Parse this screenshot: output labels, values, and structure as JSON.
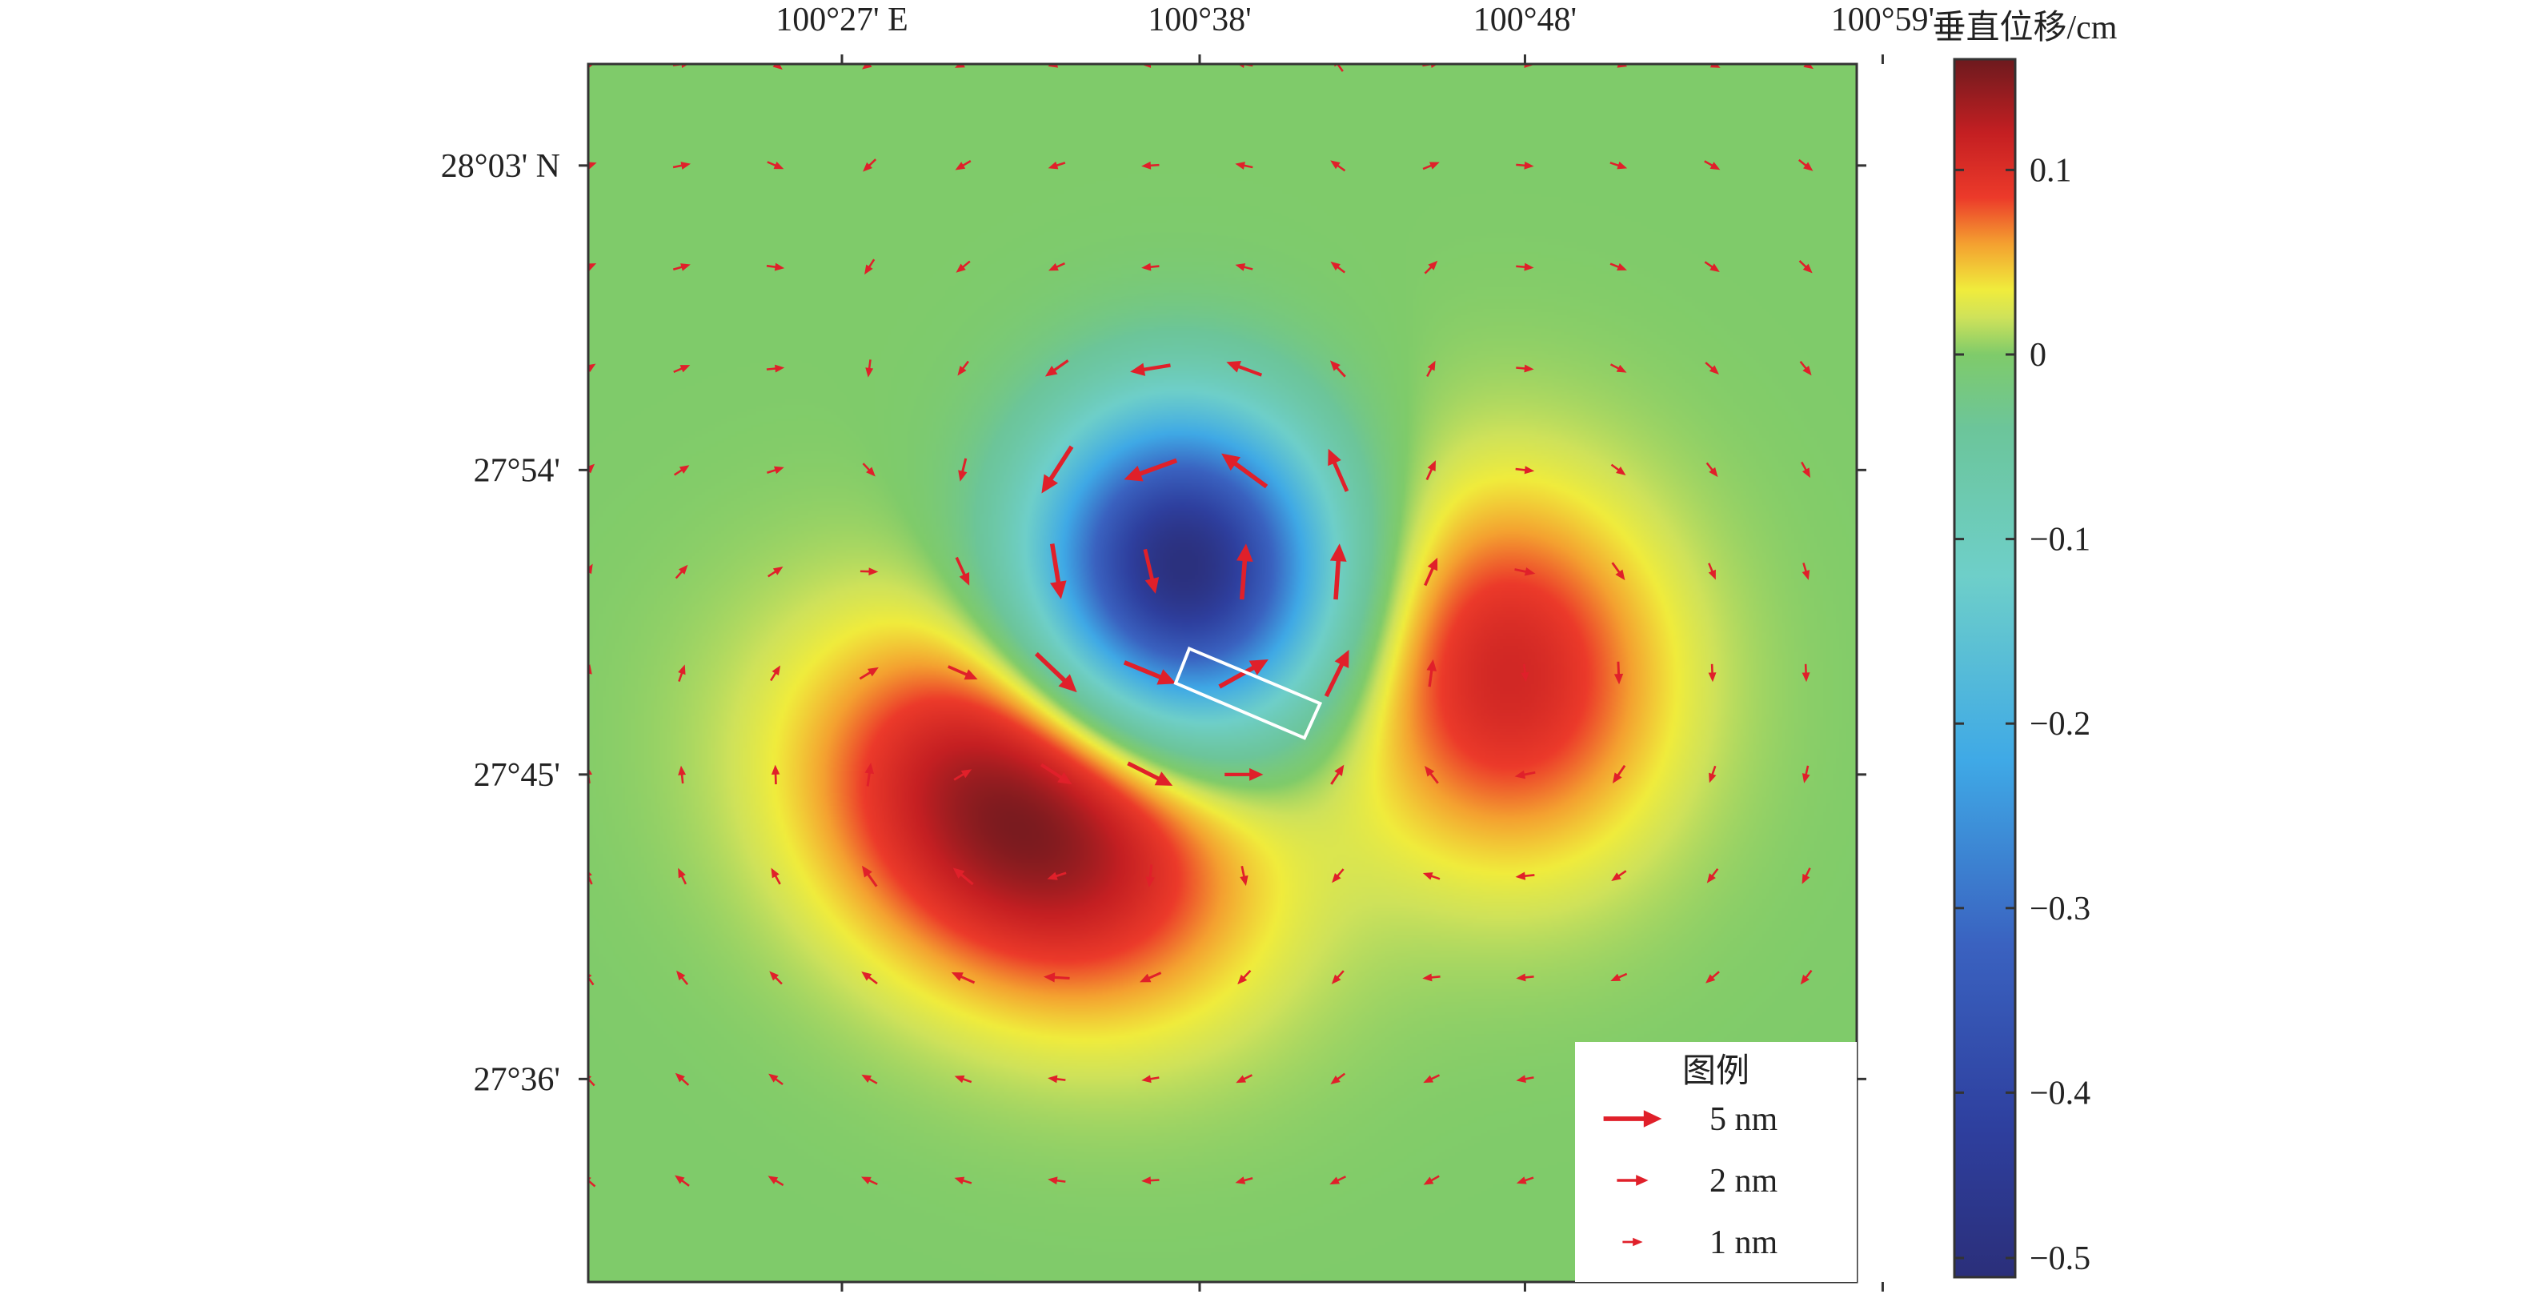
{
  "chart_data": {
    "type": "heatmap",
    "title": "",
    "colorbar": {
      "label": "垂直位移/cm",
      "range": [
        -0.5,
        0.16
      ],
      "ticks": [
        {
          "value": 0.1,
          "label": "0.1"
        },
        {
          "value": 0,
          "label": "0"
        },
        {
          "value": -0.1,
          "label": "−0.1"
        },
        {
          "value": -0.2,
          "label": "−0.2"
        },
        {
          "value": -0.3,
          "label": "−0.3"
        },
        {
          "value": -0.4,
          "label": "−0.4"
        },
        {
          "value": -0.5,
          "label": "−0.5"
        }
      ],
      "stops": [
        {
          "v": -0.5,
          "color": "#2b2f7a"
        },
        {
          "v": -0.42,
          "color": "#2e3f9e"
        },
        {
          "v": -0.32,
          "color": "#3a62c0"
        },
        {
          "v": -0.22,
          "color": "#3fa9e6"
        },
        {
          "v": -0.12,
          "color": "#6ecfc9"
        },
        {
          "v": -0.04,
          "color": "#6cc59a"
        },
        {
          "v": 0.0,
          "color": "#7fcb6a"
        },
        {
          "v": 0.02,
          "color": "#cfe25a"
        },
        {
          "v": 0.035,
          "color": "#f0ec3c"
        },
        {
          "v": 0.06,
          "color": "#f4a030"
        },
        {
          "v": 0.085,
          "color": "#ec3a2a"
        },
        {
          "v": 0.12,
          "color": "#c41f22"
        },
        {
          "v": 0.16,
          "color": "#6d1a1e"
        }
      ]
    },
    "x_axis": {
      "unit": "longitude",
      "range": [
        100.32,
        100.97
      ],
      "ticks": [
        {
          "value": 100.45,
          "label": "100°27' E"
        },
        {
          "value": 100.6333,
          "label": "100°38'"
        },
        {
          "value": 100.8,
          "label": "100°48'"
        },
        {
          "value": 100.9833,
          "label": "100°59'"
        }
      ]
    },
    "y_axis": {
      "unit": "latitude",
      "range": [
        27.5,
        28.1
      ],
      "ticks": [
        {
          "value": 28.05,
          "label": "28°03' N"
        },
        {
          "value": 27.9,
          "label": "27°54'"
        },
        {
          "value": 27.75,
          "label": "27°45'"
        },
        {
          "value": 27.6,
          "label": "27°36'"
        }
      ]
    },
    "field_sources": [
      {
        "lon": 100.625,
        "lat": 27.852,
        "value": -0.5
      },
      {
        "lon": 100.545,
        "lat": 27.728,
        "value": 0.16
      },
      {
        "lon": 100.79,
        "lat": 27.8,
        "value": 0.11
      }
    ],
    "fault_rectangle": {
      "corners": [
        {
          "lon": 100.628,
          "lat": 27.812
        },
        {
          "lon": 100.695,
          "lat": 27.785
        },
        {
          "lon": 100.687,
          "lat": 27.768
        },
        {
          "lon": 100.621,
          "lat": 27.795
        }
      ]
    },
    "vectors": {
      "lons": [
        100.32,
        100.368,
        100.416,
        100.464,
        100.512,
        100.56,
        100.608,
        100.656,
        100.704,
        100.752,
        100.8,
        100.848,
        100.896,
        100.944
      ],
      "lats": [
        28.1,
        28.05,
        28.0,
        27.95,
        27.9,
        27.85,
        27.8,
        27.75,
        27.7,
        27.65,
        27.6,
        27.55
      ],
      "unit": "nm"
    },
    "legend": {
      "title": "图例",
      "position": "bottom-right",
      "items": [
        {
          "label": "5 nm",
          "magnitude": 5
        },
        {
          "label": "2 nm",
          "magnitude": 2
        },
        {
          "label": "1 nm",
          "magnitude": 1
        }
      ]
    },
    "colors": {
      "vector": "#e0202a",
      "fault_outline": "#ffffff",
      "frame": "#333333"
    }
  }
}
